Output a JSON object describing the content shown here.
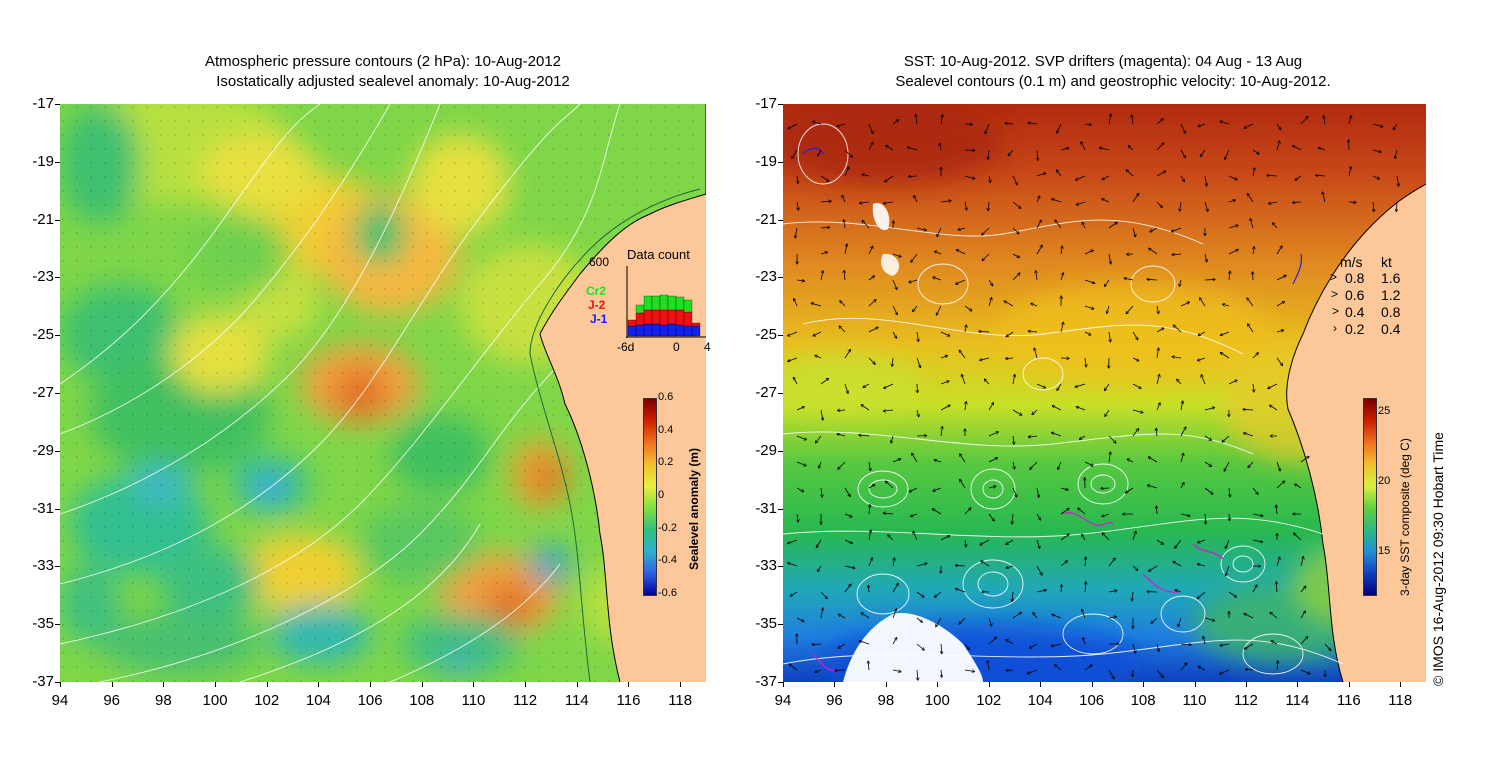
{
  "left": {
    "title_line1": "Atmospheric pressure contours (2 hPa): 10-Aug-2012",
    "title_line2": "Isostatically adjusted sealevel anomaly: 10-Aug-2012",
    "y_ticks": [
      "-17",
      "-19",
      "-21",
      "-23",
      "-25",
      "-27",
      "-29",
      "-31",
      "-33",
      "-35",
      "-37"
    ],
    "x_ticks": [
      "94",
      "96",
      "98",
      "100",
      "102",
      "104",
      "106",
      "108",
      "110",
      "112",
      "114",
      "116",
      "118"
    ],
    "colorbar": {
      "title": "Sealevel anomaly (m)",
      "ticks": [
        "0.6",
        "0.4",
        "0.2",
        "0",
        "-0.2",
        "-0.4",
        "-0.6"
      ]
    },
    "data_count": {
      "title": "Data count",
      "ymax_label": "600",
      "x_labels": [
        "-6d",
        "0",
        "4"
      ],
      "legend": [
        {
          "label": "Cr2",
          "color": "#22dd22"
        },
        {
          "label": "J-2",
          "color": "#ee1111"
        },
        {
          "label": "J-1",
          "color": "#1122ee"
        }
      ]
    }
  },
  "right": {
    "title_line1": "SST: 10-Aug-2012. SVP drifters (magenta): 04 Aug - 13 Aug",
    "title_line2": "Sealevel contours (0.1 m) and geostrophic velocity: 10-Aug-2012.",
    "y_ticks": [
      "-17",
      "-19",
      "-21",
      "-23",
      "-25",
      "-27",
      "-29",
      "-31",
      "-33",
      "-35",
      "-37"
    ],
    "x_ticks": [
      "94",
      "96",
      "98",
      "100",
      "102",
      "104",
      "106",
      "108",
      "110",
      "112",
      "114",
      "116",
      "118"
    ],
    "velocity_legend": {
      "header_ms": "m/s",
      "header_kt": "kt",
      "rows": [
        {
          "ms": "0.8",
          "kt": "1.6"
        },
        {
          "ms": "0.6",
          "kt": "1.2"
        },
        {
          "ms": "0.4",
          "kt": "0.8"
        },
        {
          "ms": "0.2",
          "kt": "0.4"
        }
      ]
    },
    "colorbar": {
      "title": "3-day SST composite (deg C)",
      "ticks": [
        "25",
        "20",
        "15"
      ]
    },
    "credit": "© IMOS 16-Aug-2012 09:30 Hobart Time"
  }
}
